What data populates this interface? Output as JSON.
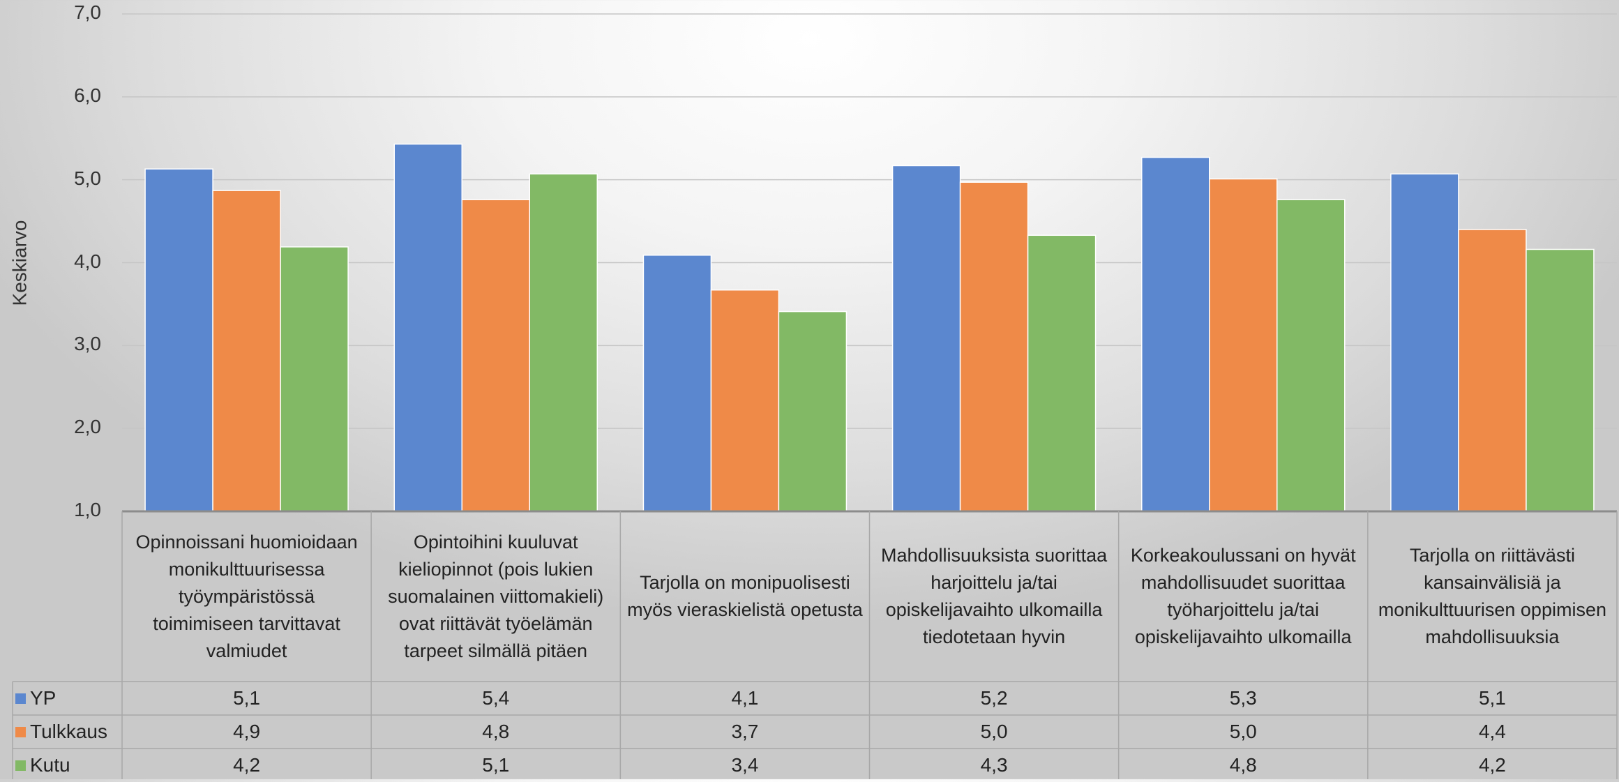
{
  "chart_data": {
    "type": "bar",
    "ylabel": "Keskiarvo",
    "ylim": [
      1.0,
      7.0
    ],
    "yticks": [
      "1,0",
      "2,0",
      "3,0",
      "4,0",
      "5,0",
      "6,0",
      "7,0"
    ],
    "grid": true,
    "legend": "data-table",
    "categories": [
      "Opinnoissani huomioidaan monikulttuurisessa työympäristössä toimimiseen tarvittavat valmiudet",
      "Opintoihini kuuluvat kieliopinnot (pois lukien suomalainen viittomakieli) ovat riittävät työelämän tarpeet silmällä pitäen",
      "Tarjolla on monipuolisesti myös vieraskielistä opetusta",
      "Mahdollisuuksista suorittaa harjoittelu ja/tai opiskelijavaihto ulkomailla tiedotetaan hyvin",
      "Korkeakoulussani on hyvät mahdollisuudet suorittaa työharjoittelu ja/tai opiskelijavaihto ulkomailla",
      "Tarjolla on riittävästi kansainvälisiä ja monikulttuurisen oppimisen mahdollisuuksia"
    ],
    "series": [
      {
        "name": "YP",
        "color": "#5b87cf",
        "values": [
          5.13,
          5.43,
          4.09,
          5.17,
          5.27,
          5.07
        ],
        "labels": [
          "5,1",
          "5,4",
          "4,1",
          "5,2",
          "5,3",
          "5,1"
        ]
      },
      {
        "name": "Tulkkaus",
        "color": "#ef8a48",
        "values": [
          4.87,
          4.76,
          3.67,
          4.97,
          5.01,
          4.4
        ],
        "labels": [
          "4,9",
          "4,8",
          "3,7",
          "5,0",
          "5,0",
          "4,4"
        ]
      },
      {
        "name": "Kutu",
        "color": "#82b965",
        "values": [
          4.19,
          5.07,
          3.41,
          4.33,
          4.76,
          4.16
        ],
        "labels": [
          "4,2",
          "5,1",
          "3,4",
          "4,3",
          "4,8",
          "4,2"
        ]
      }
    ]
  }
}
